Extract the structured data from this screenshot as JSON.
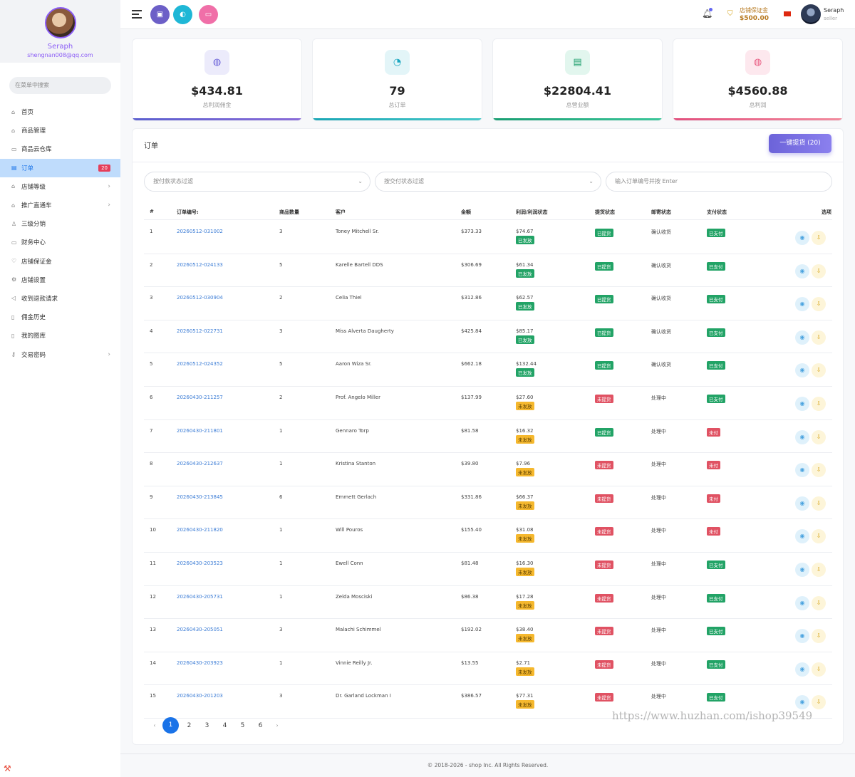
{
  "sidebar": {
    "profile": {
      "name": "Seraph",
      "email": "shengnan008@qq.com"
    },
    "search_placeholder": "在菜单中搜索",
    "items": [
      {
        "label": "首页",
        "icon": "home-icon",
        "glyph": "⌂"
      },
      {
        "label": "商品管理",
        "icon": "bag-icon",
        "glyph": "⌂"
      },
      {
        "label": "商品云仓库",
        "icon": "warehouse-icon",
        "glyph": "▭"
      },
      {
        "label": "订单",
        "icon": "orders-icon",
        "glyph": "▤",
        "badge": "20",
        "active": true
      },
      {
        "label": "店铺等级",
        "icon": "shop-level-icon",
        "glyph": "⌂",
        "chevron": true
      },
      {
        "label": "推广直通车",
        "icon": "promotion-icon",
        "glyph": "⌂",
        "chevron": true
      },
      {
        "label": "三级分销",
        "icon": "user-icon",
        "glyph": "♙"
      },
      {
        "label": "财务中心",
        "icon": "finance-icon",
        "glyph": "▭"
      },
      {
        "label": "店铺保证金",
        "icon": "shield-icon",
        "glyph": "♡"
      },
      {
        "label": "店铺设置",
        "icon": "gear-icon",
        "glyph": "⚙"
      },
      {
        "label": "收到退款请求",
        "icon": "refund-icon",
        "glyph": "◁"
      },
      {
        "label": "佣金历史",
        "icon": "history-icon",
        "glyph": "▯"
      },
      {
        "label": "我的图库",
        "icon": "gallery-icon",
        "glyph": "▯"
      },
      {
        "label": "交易密码",
        "icon": "key-icon",
        "glyph": "⚷",
        "chevron": true
      }
    ]
  },
  "header": {
    "deposit_label": "店铺保证金",
    "deposit_amount": "$500.00",
    "user_name": "Seraph",
    "user_role": "seller",
    "colors": {
      "btn1": "#6c5fc7",
      "btn2": "#1fb7d6",
      "btn3": "#f06fa8"
    }
  },
  "stats": [
    {
      "value": "$434.81",
      "label": "总利润佣金",
      "icon": "coins-icon",
      "glyph": "◍",
      "icon_bg": "#ecebfb",
      "icon_color": "#6c63d9",
      "bar": "linear-gradient(90deg,#5b5fcf,#8a6cd8)"
    },
    {
      "value": "79",
      "label": "总订单",
      "icon": "pie-chart-icon",
      "glyph": "◔",
      "icon_bg": "#e3f5f8",
      "icon_color": "#1aa6c0",
      "bar": "linear-gradient(90deg,#1aa6b5,#48c9c9)"
    },
    {
      "value": "$22804.41",
      "label": "总营业额",
      "icon": "invoice-icon",
      "glyph": "▤",
      "icon_bg": "#e2f6ee",
      "icon_color": "#1f9f6e",
      "bar": "linear-gradient(90deg,#199e72,#3cc69a)"
    },
    {
      "value": "$4560.88",
      "label": "总利润",
      "icon": "coins-pink-icon",
      "glyph": "◍",
      "icon_bg": "#fde8ee",
      "icon_color": "#e8587f",
      "bar": "linear-gradient(90deg,#e24f7d,#f28c9e)"
    }
  ],
  "orders": {
    "title": "订单",
    "pickup_button": "一键提货 (20)",
    "filter_payment": "按付款状态过滤",
    "filter_delivery": "按交付状态过滤",
    "search_placeholder": "输入订单编号并按 Enter",
    "columns": [
      "#",
      "订单编号:",
      "商品数量",
      "客户",
      "金额",
      "利润/利润状态",
      "提货状态",
      "邮寄状态",
      "支付状态",
      "选项"
    ],
    "rows": [
      {
        "n": "1",
        "code": "20260512-031002",
        "qty": "3",
        "customer": "Toney Mitchell Sr.",
        "amount": "$373.33",
        "profit": "$74.67",
        "profit_status": "已发放",
        "profit_color": "green",
        "pickup": "已提货",
        "pickup_color": "green",
        "mail": "确认收货",
        "pay": "已支付",
        "pay_color": "green"
      },
      {
        "n": "2",
        "code": "20260512-024133",
        "qty": "5",
        "customer": "Karelle Bartell DDS",
        "amount": "$306.69",
        "profit": "$61.34",
        "profit_status": "已发放",
        "profit_color": "green",
        "pickup": "已提货",
        "pickup_color": "green",
        "mail": "确认收货",
        "pay": "已支付",
        "pay_color": "green"
      },
      {
        "n": "3",
        "code": "20260512-030904",
        "qty": "2",
        "customer": "Celia Thiel",
        "amount": "$312.86",
        "profit": "$62.57",
        "profit_status": "已发放",
        "profit_color": "green",
        "pickup": "已提货",
        "pickup_color": "green",
        "mail": "确认收货",
        "pay": "已支付",
        "pay_color": "green"
      },
      {
        "n": "4",
        "code": "20260512-022731",
        "qty": "3",
        "customer": "Miss Alverta Daugherty",
        "amount": "$425.84",
        "profit": "$85.17",
        "profit_status": "已发放",
        "profit_color": "green",
        "pickup": "已提货",
        "pickup_color": "green",
        "mail": "确认收货",
        "pay": "已支付",
        "pay_color": "green"
      },
      {
        "n": "5",
        "code": "20260512-024352",
        "qty": "5",
        "customer": "Aaron Wiza Sr.",
        "amount": "$662.18",
        "profit": "$132.44",
        "profit_status": "已发放",
        "profit_color": "green",
        "pickup": "已提货",
        "pickup_color": "green",
        "mail": "确认收货",
        "pay": "已支付",
        "pay_color": "green"
      },
      {
        "n": "6",
        "code": "20260430-211257",
        "qty": "2",
        "customer": "Prof. Angelo Miller",
        "amount": "$137.99",
        "profit": "$27.60",
        "profit_status": "未发放",
        "profit_color": "yellow",
        "pickup": "未提货",
        "pickup_color": "red",
        "mail": "处理中",
        "pay": "已支付",
        "pay_color": "green"
      },
      {
        "n": "7",
        "code": "20260430-211801",
        "qty": "1",
        "customer": "Gennaro Torp",
        "amount": "$81.58",
        "profit": "$16.32",
        "profit_status": "未发放",
        "profit_color": "yellow",
        "pickup": "已提货",
        "pickup_color": "green",
        "mail": "处理中",
        "pay": "未付",
        "pay_color": "red"
      },
      {
        "n": "8",
        "code": "20260430-212637",
        "qty": "1",
        "customer": "Kristina Stanton",
        "amount": "$39.80",
        "profit": "$7.96",
        "profit_status": "未发放",
        "profit_color": "yellow",
        "pickup": "未提货",
        "pickup_color": "red",
        "mail": "处理中",
        "pay": "未付",
        "pay_color": "red"
      },
      {
        "n": "9",
        "code": "20260430-213845",
        "qty": "6",
        "customer": "Emmett Gerlach",
        "amount": "$331.86",
        "profit": "$66.37",
        "profit_status": "未发放",
        "profit_color": "yellow",
        "pickup": "未提货",
        "pickup_color": "red",
        "mail": "处理中",
        "pay": "未付",
        "pay_color": "red"
      },
      {
        "n": "10",
        "code": "20260430-211820",
        "qty": "1",
        "customer": "Will Pouros",
        "amount": "$155.40",
        "profit": "$31.08",
        "profit_status": "未发放",
        "profit_color": "yellow",
        "pickup": "未提货",
        "pickup_color": "red",
        "mail": "处理中",
        "pay": "未付",
        "pay_color": "red"
      },
      {
        "n": "11",
        "code": "20260430-203523",
        "qty": "1",
        "customer": "Ewell Conn",
        "amount": "$81.48",
        "profit": "$16.30",
        "profit_status": "未发放",
        "profit_color": "yellow",
        "pickup": "未提货",
        "pickup_color": "red",
        "mail": "处理中",
        "pay": "已支付",
        "pay_color": "green"
      },
      {
        "n": "12",
        "code": "20260430-205731",
        "qty": "1",
        "customer": "Zelda Mosciski",
        "amount": "$86.38",
        "profit": "$17.28",
        "profit_status": "未发放",
        "profit_color": "yellow",
        "pickup": "未提货",
        "pickup_color": "red",
        "mail": "处理中",
        "pay": "已支付",
        "pay_color": "green"
      },
      {
        "n": "13",
        "code": "20260430-205051",
        "qty": "3",
        "customer": "Malachi Schimmel",
        "amount": "$192.02",
        "profit": "$38.40",
        "profit_status": "未发放",
        "profit_color": "yellow",
        "pickup": "未提货",
        "pickup_color": "red",
        "mail": "处理中",
        "pay": "已支付",
        "pay_color": "green"
      },
      {
        "n": "14",
        "code": "20260430-203923",
        "qty": "1",
        "customer": "Vinnie Reilly Jr.",
        "amount": "$13.55",
        "profit": "$2.71",
        "profit_status": "未发放",
        "profit_color": "yellow",
        "pickup": "未提货",
        "pickup_color": "red",
        "mail": "处理中",
        "pay": "已支付",
        "pay_color": "green"
      },
      {
        "n": "15",
        "code": "20260430-201203",
        "qty": "3",
        "customer": "Dr. Garland Lockman I",
        "amount": "$386.57",
        "profit": "$77.31",
        "profit_status": "未发放",
        "profit_color": "yellow",
        "pickup": "未提货",
        "pickup_color": "red",
        "mail": "处理中",
        "pay": "已支付",
        "pay_color": "green"
      }
    ],
    "pagination": {
      "prev": "‹",
      "next": "›",
      "pages": [
        "1",
        "2",
        "3",
        "4",
        "5",
        "6"
      ],
      "current": "1"
    }
  },
  "footer": "© 2018-2026 - shop Inc. All Rights Reserved.",
  "watermark": "https://www.huzhan.com/ishop39549"
}
